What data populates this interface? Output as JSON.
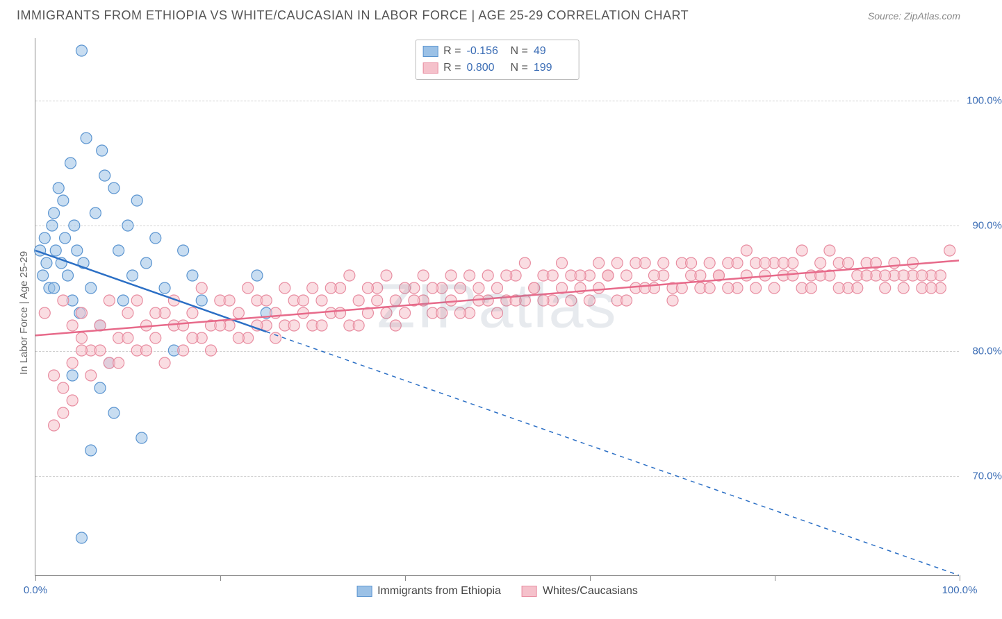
{
  "header": {
    "title": "IMMIGRANTS FROM ETHIOPIA VS WHITE/CAUCASIAN IN LABOR FORCE | AGE 25-29 CORRELATION CHART",
    "source": "Source: ZipAtlas.com"
  },
  "chart": {
    "type": "scatter",
    "ylabel": "In Labor Force | Age 25-29",
    "watermark": "ZIPatlas",
    "xlim": [
      0,
      100
    ],
    "ylim": [
      62,
      105
    ],
    "ytick_labels": [
      "70.0%",
      "80.0%",
      "90.0%",
      "100.0%"
    ],
    "ytick_values": [
      70,
      80,
      90,
      100
    ],
    "xtick_values": [
      0,
      20,
      40,
      60,
      80,
      100
    ],
    "xtick_labels_shown": {
      "0": "0.0%",
      "100": "100.0%"
    },
    "grid_color": "#d0d0d0",
    "axis_color": "#888888",
    "label_color": "#3b6db5",
    "text_color": "#666666",
    "title_color": "#555555",
    "marker_radius": 8,
    "marker_opacity": 0.55,
    "series": [
      {
        "id": "ethiopia",
        "label": "Immigrants from Ethiopia",
        "fill_color": "#9bc1e6",
        "stroke_color": "#5a94d0",
        "line_color": "#2b6fc5",
        "R": "-0.156",
        "N": "49",
        "regression": {
          "x1": 0,
          "y1": 88.0,
          "x2": 100,
          "y2": 62.0,
          "solid_until_x": 25
        },
        "points": [
          [
            0.5,
            88
          ],
          [
            0.8,
            86
          ],
          [
            1.0,
            89
          ],
          [
            1.2,
            87
          ],
          [
            1.5,
            85
          ],
          [
            1.8,
            90
          ],
          [
            2.0,
            91
          ],
          [
            2.2,
            88
          ],
          [
            2.5,
            93
          ],
          [
            2.8,
            87
          ],
          [
            3.0,
            92
          ],
          [
            3.2,
            89
          ],
          [
            3.5,
            86
          ],
          [
            3.8,
            95
          ],
          [
            4.0,
            84
          ],
          [
            4.2,
            90
          ],
          [
            4.5,
            88
          ],
          [
            4.8,
            83
          ],
          [
            5.0,
            104
          ],
          [
            5.2,
            87
          ],
          [
            5.5,
            97
          ],
          [
            6.0,
            85
          ],
          [
            6.5,
            91
          ],
          [
            7.0,
            82
          ],
          [
            7.2,
            96
          ],
          [
            7.5,
            94
          ],
          [
            8.0,
            79
          ],
          [
            8.5,
            93
          ],
          [
            9.0,
            88
          ],
          [
            9.5,
            84
          ],
          [
            10,
            90
          ],
          [
            10.5,
            86
          ],
          [
            11,
            92
          ],
          [
            11.5,
            73
          ],
          [
            12,
            87
          ],
          [
            13,
            89
          ],
          [
            14,
            85
          ],
          [
            15,
            80
          ],
          [
            16,
            88
          ],
          [
            17,
            86
          ],
          [
            18,
            84
          ],
          [
            5,
            65
          ],
          [
            6,
            72
          ],
          [
            4,
            78
          ],
          [
            7,
            77
          ],
          [
            8.5,
            75
          ],
          [
            24,
            86
          ],
          [
            25,
            83
          ],
          [
            2.0,
            85
          ]
        ]
      },
      {
        "id": "white",
        "label": "Whites/Caucasians",
        "fill_color": "#f5c1cb",
        "stroke_color": "#e88ca0",
        "line_color": "#e76a8a",
        "R": "0.800",
        "N": "199",
        "regression": {
          "x1": 0,
          "y1": 81.2,
          "x2": 100,
          "y2": 87.2,
          "solid_until_x": 100
        },
        "points": [
          [
            2,
            78
          ],
          [
            3,
            75
          ],
          [
            4,
            79
          ],
          [
            5,
            81
          ],
          [
            6,
            80
          ],
          [
            7,
            82
          ],
          [
            8,
            79
          ],
          [
            9,
            81
          ],
          [
            10,
            83
          ],
          [
            11,
            80
          ],
          [
            12,
            82
          ],
          [
            13,
            81
          ],
          [
            14,
            83
          ],
          [
            15,
            82
          ],
          [
            16,
            80
          ],
          [
            17,
            83
          ],
          [
            18,
            81
          ],
          [
            19,
            82
          ],
          [
            20,
            84
          ],
          [
            21,
            82
          ],
          [
            22,
            83
          ],
          [
            23,
            81
          ],
          [
            24,
            84
          ],
          [
            25,
            82
          ],
          [
            26,
            83
          ],
          [
            27,
            82
          ],
          [
            28,
            84
          ],
          [
            29,
            83
          ],
          [
            30,
            82
          ],
          [
            31,
            84
          ],
          [
            32,
            83
          ],
          [
            33,
            85
          ],
          [
            34,
            82
          ],
          [
            35,
            84
          ],
          [
            36,
            83
          ],
          [
            37,
            85
          ],
          [
            38,
            83
          ],
          [
            39,
            84
          ],
          [
            40,
            83
          ],
          [
            41,
            85
          ],
          [
            42,
            84
          ],
          [
            43,
            83
          ],
          [
            44,
            85
          ],
          [
            45,
            84
          ],
          [
            46,
            85
          ],
          [
            47,
            83
          ],
          [
            48,
            85
          ],
          [
            49,
            84
          ],
          [
            50,
            85
          ],
          [
            51,
            84
          ],
          [
            52,
            86
          ],
          [
            53,
            84
          ],
          [
            54,
            85
          ],
          [
            55,
            86
          ],
          [
            56,
            84
          ],
          [
            57,
            85
          ],
          [
            58,
            86
          ],
          [
            59,
            85
          ],
          [
            60,
            86
          ],
          [
            61,
            85
          ],
          [
            62,
            86
          ],
          [
            63,
            84
          ],
          [
            64,
            86
          ],
          [
            65,
            85
          ],
          [
            66,
            87
          ],
          [
            67,
            85
          ],
          [
            68,
            86
          ],
          [
            69,
            85
          ],
          [
            70,
            87
          ],
          [
            71,
            86
          ],
          [
            72,
            85
          ],
          [
            73,
            87
          ],
          [
            74,
            86
          ],
          [
            75,
            87
          ],
          [
            76,
            85
          ],
          [
            77,
            86
          ],
          [
            78,
            87
          ],
          [
            79,
            86
          ],
          [
            80,
            87
          ],
          [
            81,
            86
          ],
          [
            82,
            87
          ],
          [
            83,
            85
          ],
          [
            84,
            86
          ],
          [
            85,
            87
          ],
          [
            86,
            86
          ],
          [
            87,
            87
          ],
          [
            88,
            85
          ],
          [
            89,
            86
          ],
          [
            90,
            87
          ],
          [
            91,
            86
          ],
          [
            92,
            85
          ],
          [
            93,
            86
          ],
          [
            94,
            85
          ],
          [
            95,
            86
          ],
          [
            96,
            85
          ],
          [
            97,
            86
          ],
          [
            98,
            85
          ],
          [
            99,
            88
          ],
          [
            3,
            84
          ],
          [
            4,
            82
          ],
          [
            5,
            83
          ],
          [
            6,
            78
          ],
          [
            7,
            80
          ],
          [
            8,
            84
          ],
          [
            9,
            79
          ],
          [
            10,
            81
          ],
          [
            11,
            84
          ],
          [
            12,
            80
          ],
          [
            13,
            83
          ],
          [
            14,
            79
          ],
          [
            15,
            84
          ],
          [
            16,
            82
          ],
          [
            17,
            81
          ],
          [
            18,
            85
          ],
          [
            19,
            80
          ],
          [
            20,
            82
          ],
          [
            21,
            84
          ],
          [
            22,
            81
          ],
          [
            23,
            85
          ],
          [
            24,
            82
          ],
          [
            25,
            84
          ],
          [
            26,
            81
          ],
          [
            27,
            85
          ],
          [
            28,
            82
          ],
          [
            29,
            84
          ],
          [
            30,
            85
          ],
          [
            31,
            82
          ],
          [
            32,
            85
          ],
          [
            33,
            83
          ],
          [
            34,
            86
          ],
          [
            35,
            82
          ],
          [
            36,
            85
          ],
          [
            37,
            84
          ],
          [
            38,
            86
          ],
          [
            39,
            82
          ],
          [
            40,
            85
          ],
          [
            41,
            84
          ],
          [
            42,
            86
          ],
          [
            43,
            85
          ],
          [
            44,
            83
          ],
          [
            45,
            86
          ],
          [
            46,
            83
          ],
          [
            47,
            86
          ],
          [
            48,
            84
          ],
          [
            49,
            86
          ],
          [
            50,
            83
          ],
          [
            51,
            86
          ],
          [
            52,
            84
          ],
          [
            53,
            87
          ],
          [
            54,
            85
          ],
          [
            55,
            84
          ],
          [
            56,
            86
          ],
          [
            57,
            87
          ],
          [
            58,
            84
          ],
          [
            59,
            86
          ],
          [
            60,
            84
          ],
          [
            61,
            87
          ],
          [
            62,
            86
          ],
          [
            63,
            87
          ],
          [
            64,
            84
          ],
          [
            65,
            87
          ],
          [
            66,
            85
          ],
          [
            67,
            86
          ],
          [
            68,
            87
          ],
          [
            69,
            84
          ],
          [
            70,
            85
          ],
          [
            71,
            87
          ],
          [
            72,
            86
          ],
          [
            73,
            85
          ],
          [
            74,
            86
          ],
          [
            75,
            85
          ],
          [
            76,
            87
          ],
          [
            77,
            88
          ],
          [
            78,
            85
          ],
          [
            79,
            87
          ],
          [
            80,
            85
          ],
          [
            81,
            87
          ],
          [
            82,
            86
          ],
          [
            83,
            88
          ],
          [
            84,
            85
          ],
          [
            85,
            86
          ],
          [
            86,
            88
          ],
          [
            87,
            85
          ],
          [
            88,
            87
          ],
          [
            89,
            85
          ],
          [
            90,
            86
          ],
          [
            91,
            87
          ],
          [
            92,
            86
          ],
          [
            93,
            87
          ],
          [
            94,
            86
          ],
          [
            95,
            87
          ],
          [
            96,
            86
          ],
          [
            97,
            85
          ],
          [
            98,
            86
          ],
          [
            2,
            74
          ],
          [
            3,
            77
          ],
          [
            4,
            76
          ],
          [
            5,
            80
          ],
          [
            1,
            83
          ]
        ]
      }
    ]
  }
}
